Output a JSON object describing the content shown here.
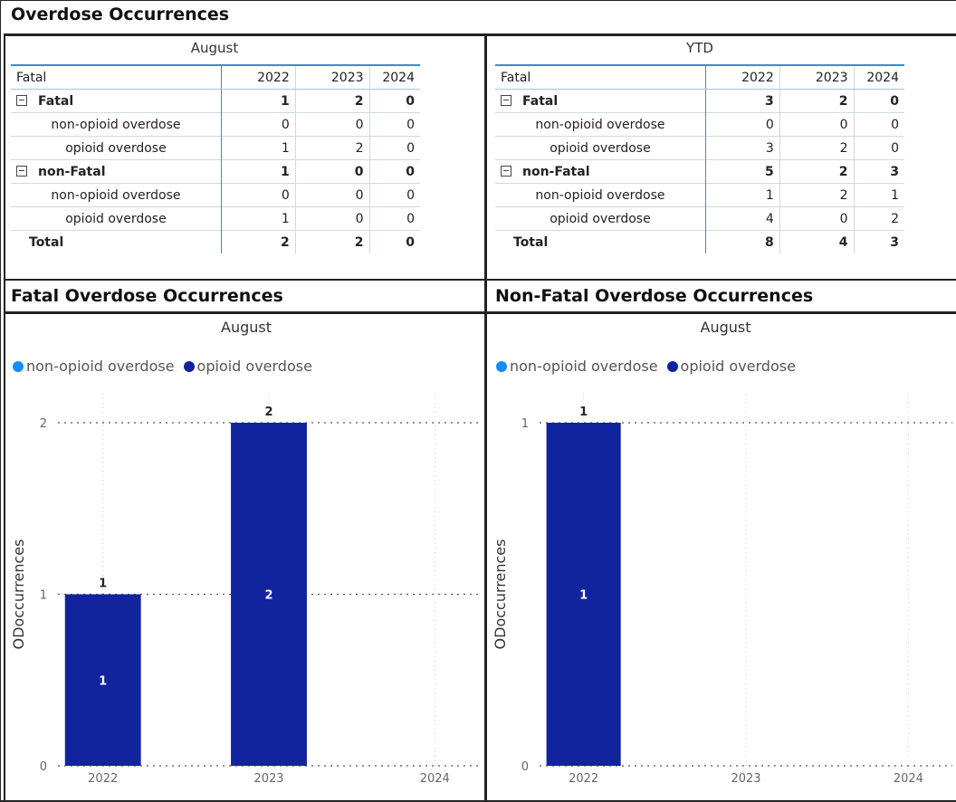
{
  "page_title": "Overdose Occurrences",
  "matrix_august": {
    "title": "August",
    "row_header": "Fatal",
    "columns": [
      "2022",
      "2023",
      "2024"
    ],
    "groups": [
      {
        "label": "Fatal",
        "values": [
          "1",
          "2",
          "0"
        ],
        "children": [
          {
            "label": "non-opioid overdose",
            "values": [
              "0",
              "0",
              "0"
            ]
          },
          {
            "label": "opioid overdose",
            "values": [
              "1",
              "2",
              "0"
            ]
          }
        ]
      },
      {
        "label": "non-Fatal",
        "values": [
          "1",
          "0",
          "0"
        ],
        "children": [
          {
            "label": "non-opioid overdose",
            "values": [
              "0",
              "0",
              "0"
            ]
          },
          {
            "label": "opioid overdose",
            "values": [
              "1",
              "0",
              "0"
            ]
          }
        ]
      }
    ],
    "total": {
      "label": "Total",
      "values": [
        "2",
        "2",
        "0"
      ]
    }
  },
  "matrix_ytd": {
    "title": "YTD",
    "row_header": "Fatal",
    "columns": [
      "2022",
      "2023",
      "2024"
    ],
    "groups": [
      {
        "label": "Fatal",
        "values": [
          "3",
          "2",
          "0"
        ],
        "children": [
          {
            "label": "non-opioid overdose",
            "values": [
              "0",
              "0",
              "0"
            ]
          },
          {
            "label": "opioid overdose",
            "values": [
              "3",
              "2",
              "0"
            ]
          }
        ]
      },
      {
        "label": "non-Fatal",
        "values": [
          "5",
          "2",
          "3"
        ],
        "children": [
          {
            "label": "non-opioid overdose",
            "values": [
              "1",
              "2",
              "1"
            ]
          },
          {
            "label": "opioid overdose",
            "values": [
              "4",
              "0",
              "2"
            ]
          }
        ]
      }
    ],
    "total": {
      "label": "Total",
      "values": [
        "8",
        "4",
        "3"
      ]
    }
  },
  "fatal_chart_header": "Fatal Overdose Occurrences",
  "nonfatal_chart_header": "Non-Fatal Overdose Occurrences",
  "legend": [
    {
      "label": "non-opioid overdose",
      "color": "#118dff"
    },
    {
      "label": "opioid overdose",
      "color": "#12239e"
    }
  ],
  "chart_data": [
    {
      "type": "bar",
      "title": "August",
      "ylabel": "ODoccurrences",
      "xlabel": "",
      "categories": [
        "2022",
        "2023",
        "2024"
      ],
      "series": [
        {
          "name": "non-opioid overdose",
          "color": "#118dff",
          "values": [
            0,
            0,
            0
          ]
        },
        {
          "name": "opioid overdose",
          "color": "#12239e",
          "values": [
            1,
            2,
            0
          ]
        }
      ],
      "totals": [
        1,
        2,
        null
      ],
      "ylim": [
        0,
        2
      ],
      "yticks": [
        0,
        1,
        2
      ],
      "grid": true,
      "legend_position": "top-left"
    },
    {
      "type": "bar",
      "title": "August",
      "ylabel": "ODoccurrences",
      "xlabel": "",
      "categories": [
        "2022",
        "2023",
        "2024"
      ],
      "series": [
        {
          "name": "non-opioid overdose",
          "color": "#118dff",
          "values": [
            0,
            0,
            0
          ]
        },
        {
          "name": "opioid overdose",
          "color": "#12239e",
          "values": [
            1,
            0,
            0
          ]
        }
      ],
      "totals": [
        1,
        null,
        null
      ],
      "ylim": [
        0,
        1
      ],
      "yticks": [
        0,
        1
      ],
      "grid": true,
      "legend_position": "top-left"
    }
  ]
}
